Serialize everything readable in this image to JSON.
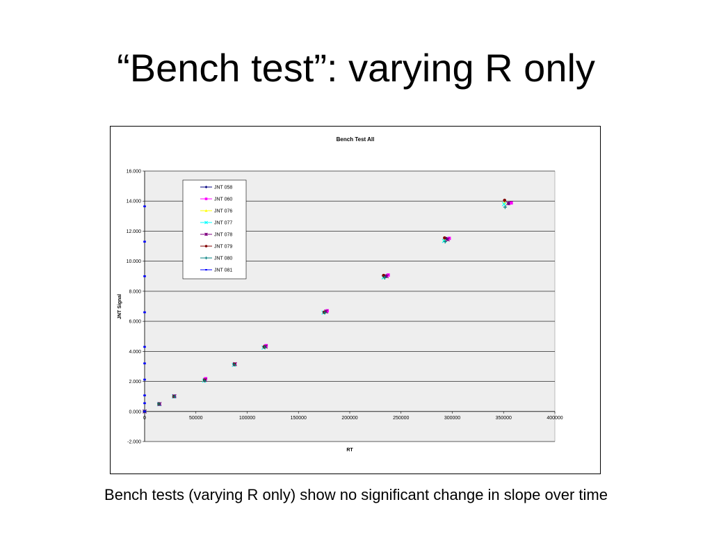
{
  "slide": {
    "title": "“Bench test”: varying R only",
    "caption": "Bench tests (varying R only) show no significant change in slope over time"
  },
  "chart_data": {
    "type": "scatter",
    "title": "Bench Test All",
    "xlabel": "RT",
    "ylabel": "JNT Signal",
    "xlim": [
      0,
      400000
    ],
    "ylim": [
      -2,
      16
    ],
    "x_ticks": [
      "0",
      "50000",
      "100000",
      "150000",
      "200000",
      "250000",
      "300000",
      "350000",
      "400000"
    ],
    "y_ticks": [
      "-2.000",
      "0.000",
      "2.000",
      "4.000",
      "6.000",
      "8.000",
      "10.000",
      "12.000",
      "14.000",
      "16.000"
    ],
    "gridlines": "horizontal",
    "plot_background": "#eeeeee",
    "legend_position": "top-left",
    "series": [
      {
        "name": "JNT 058",
        "color": "#000080",
        "marker": "diamond",
        "points": [
          [
            0,
            0
          ],
          [
            14500,
            0.5
          ],
          [
            29000,
            1.02
          ],
          [
            58500,
            2.12
          ],
          [
            88000,
            3.15
          ],
          [
            117500,
            4.35
          ],
          [
            176500,
            6.65
          ],
          [
            235500,
            9.02
          ],
          [
            294500,
            11.5
          ],
          [
            355000,
            13.85
          ]
        ]
      },
      {
        "name": "JNT 060",
        "color": "#ff00ff",
        "marker": "square",
        "points": [
          [
            0,
            0
          ],
          [
            14500,
            0.48
          ],
          [
            29000,
            1.0
          ],
          [
            59500,
            2.18
          ],
          [
            88000,
            3.15
          ],
          [
            118500,
            4.38
          ],
          [
            178000,
            6.7
          ],
          [
            237500,
            9.08
          ],
          [
            297000,
            11.52
          ],
          [
            357500,
            13.88
          ]
        ]
      },
      {
        "name": "JNT 076",
        "color": "#ffff00",
        "marker": "triangle",
        "points": [
          [
            0,
            0
          ],
          [
            14000,
            0.5
          ],
          [
            28500,
            1.0
          ],
          [
            58000,
            2.08
          ],
          [
            87500,
            3.12
          ],
          [
            116500,
            4.28
          ],
          [
            175000,
            6.6
          ],
          [
            233500,
            8.95
          ],
          [
            292500,
            11.4
          ],
          [
            351000,
            13.9
          ]
        ]
      },
      {
        "name": "JNT 077",
        "color": "#00ffff",
        "marker": "x",
        "points": [
          [
            0,
            0
          ],
          [
            14000,
            0.48
          ],
          [
            28500,
            1.0
          ],
          [
            58000,
            2.05
          ],
          [
            87000,
            3.1
          ],
          [
            116000,
            4.25
          ],
          [
            174500,
            6.58
          ],
          [
            233000,
            8.92
          ],
          [
            292000,
            11.35
          ],
          [
            350500,
            13.8
          ]
        ]
      },
      {
        "name": "JNT 078",
        "color": "#800080",
        "marker": "star",
        "points": [
          [
            0,
            0
          ],
          [
            14500,
            0.5
          ],
          [
            29000,
            1.02
          ],
          [
            59000,
            2.1
          ],
          [
            88000,
            3.15
          ],
          [
            118000,
            4.32
          ],
          [
            177000,
            6.65
          ],
          [
            236000,
            9.0
          ],
          [
            295500,
            11.45
          ],
          [
            354500,
            13.85
          ]
        ]
      },
      {
        "name": "JNT 079",
        "color": "#800000",
        "marker": "circle",
        "points": [
          [
            0,
            0
          ],
          [
            14000,
            0.5
          ],
          [
            28500,
            1.0
          ],
          [
            58500,
            2.08
          ],
          [
            87500,
            3.15
          ],
          [
            116500,
            4.3
          ],
          [
            175000,
            6.6
          ],
          [
            233000,
            9.05
          ],
          [
            292500,
            11.55
          ],
          [
            351000,
            14.05
          ]
        ]
      },
      {
        "name": "JNT 080",
        "color": "#008080",
        "marker": "plus",
        "points": [
          [
            0,
            0
          ],
          [
            14000,
            0.5
          ],
          [
            29000,
            1.0
          ],
          [
            58500,
            2.05
          ],
          [
            87500,
            3.12
          ],
          [
            117000,
            4.28
          ],
          [
            175500,
            6.58
          ],
          [
            234000,
            8.9
          ],
          [
            293000,
            11.3
          ],
          [
            351500,
            13.6
          ]
        ]
      },
      {
        "name": "JNT 081",
        "color": "#0000ff",
        "marker": "dash",
        "points": [
          [
            0,
            0
          ],
          [
            0,
            0.55
          ],
          [
            0,
            1.07
          ],
          [
            0,
            2.12
          ],
          [
            0,
            3.2
          ],
          [
            0,
            4.3
          ],
          [
            0,
            6.6
          ],
          [
            0,
            9.0
          ],
          [
            0,
            11.3
          ],
          [
            0,
            13.65
          ]
        ]
      }
    ]
  }
}
